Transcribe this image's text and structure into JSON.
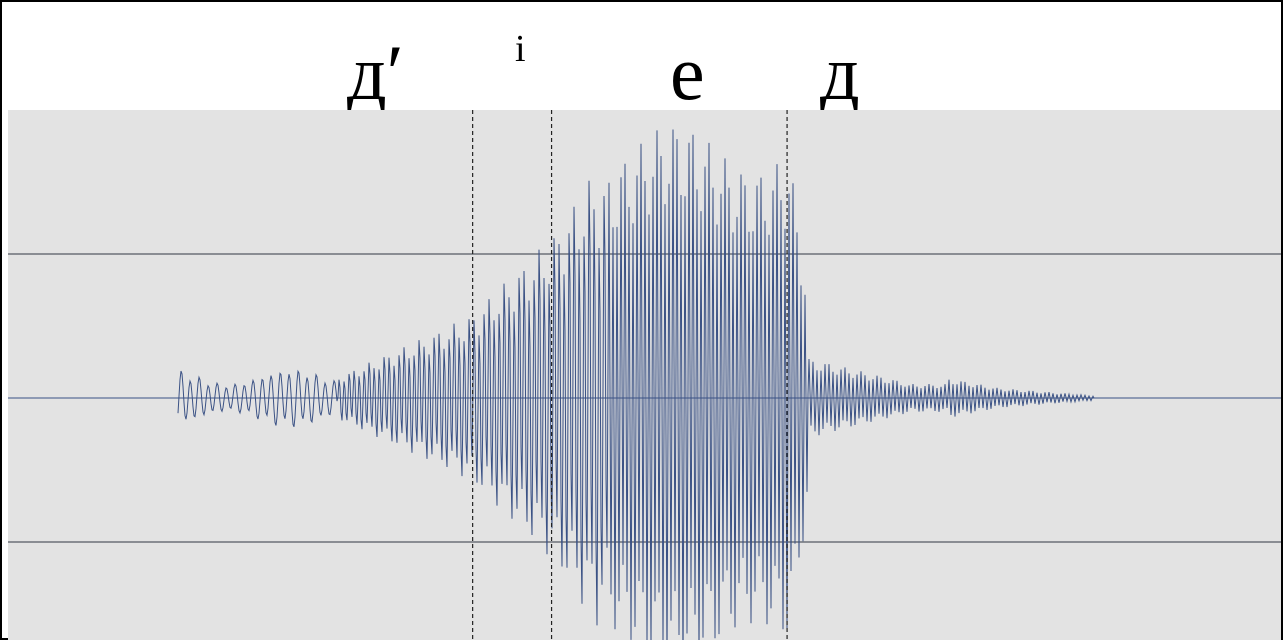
{
  "segment_labels": {
    "d_soft": "дʹ",
    "i_superscript": "i",
    "e": "е",
    "d": "д"
  },
  "colors": {
    "plot_background": "#e3e3e3",
    "waveform": "#3b5285",
    "gridline": "#555a63",
    "center_line": "#5b6e97",
    "boundary": "#222222"
  },
  "waveform_description_free": true,
  "chart_data": {
    "type": "line",
    "title": "",
    "xlabel": "",
    "ylabel": "",
    "grid": true,
    "segment_boundaries_fraction": [
      0.365,
      0.427,
      0.612
    ],
    "ylim": [
      -1,
      1
    ],
    "gridlines_y": [
      -0.5,
      0,
      0.5
    ]
  }
}
